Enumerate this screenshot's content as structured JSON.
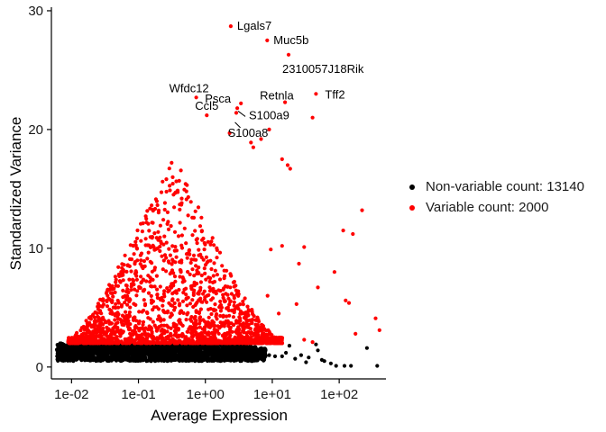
{
  "chart_data": {
    "type": "scatter",
    "xlabel": "Average Expression",
    "ylabel": "Standardized Variance",
    "x_scale": "log10",
    "xlim": [
      0.005,
      500
    ],
    "ylim": [
      -1,
      30.3
    ],
    "x_ticks": [
      0.01,
      0.1,
      1,
      10,
      100
    ],
    "x_tick_labels": [
      "1e-02",
      "1e-01",
      "1e+00",
      "1e+01",
      "1e+02"
    ],
    "y_ticks": [
      0,
      10,
      20,
      30
    ],
    "y_tick_labels": [
      "0",
      "10",
      "20",
      "30"
    ],
    "grid": false,
    "legend_position": "right",
    "series": [
      {
        "name": "Non-variable count: 13140",
        "color": "#000000",
        "count": 13140
      },
      {
        "name": "Variable count: 2000",
        "color": "#ff0000",
        "count": 2000
      }
    ],
    "labeled_points": [
      {
        "label": "Lgals7",
        "x": 2.4,
        "y": 28.7
      },
      {
        "label": "Muc5b",
        "x": 8.4,
        "y": 27.5
      },
      {
        "label": "2310057J18Rik",
        "x": 17.5,
        "y": 26.3
      },
      {
        "label": "Tff2",
        "x": 45.0,
        "y": 23.0
      },
      {
        "label": "Retnla",
        "x": 15.5,
        "y": 22.3
      },
      {
        "label": "Psca",
        "x": 3.4,
        "y": 22.2
      },
      {
        "label": "Wfdc12",
        "x": 0.73,
        "y": 22.7
      },
      {
        "label": "S100a9",
        "x": 2.9,
        "y": 21.4
      },
      {
        "label": "Ccl5",
        "x": 1.05,
        "y": 21.2
      },
      {
        "label": "S100a8",
        "x": 2.3,
        "y": 19.7
      }
    ],
    "other_outliers": [
      {
        "x": 3.0,
        "y": 21.8
      },
      {
        "x": 40.0,
        "y": 21.0
      },
      {
        "x": 4.8,
        "y": 18.9
      },
      {
        "x": 5.2,
        "y": 18.5
      },
      {
        "x": 6.8,
        "y": 19.2
      },
      {
        "x": 9.0,
        "y": 20.0
      },
      {
        "x": 14.0,
        "y": 17.5
      },
      {
        "x": 17.0,
        "y": 17.0
      },
      {
        "x": 18.5,
        "y": 16.7
      },
      {
        "x": 220.0,
        "y": 13.2
      },
      {
        "x": 160.0,
        "y": 11.2
      },
      {
        "x": 115.0,
        "y": 11.5
      },
      {
        "x": 30.0,
        "y": 10.1
      },
      {
        "x": 14.0,
        "y": 10.2
      },
      {
        "x": 9.5,
        "y": 9.9
      },
      {
        "x": 25.0,
        "y": 8.7
      },
      {
        "x": 85.0,
        "y": 8.0
      },
      {
        "x": 48.0,
        "y": 6.7
      },
      {
        "x": 125.0,
        "y": 5.6
      },
      {
        "x": 140.0,
        "y": 5.4
      },
      {
        "x": 23.0,
        "y": 5.3
      },
      {
        "x": 350.0,
        "y": 4.1
      },
      {
        "x": 400.0,
        "y": 3.1
      },
      {
        "x": 175.0,
        "y": 2.8
      },
      {
        "x": 8.5,
        "y": 6.0
      },
      {
        "x": 12.5,
        "y": 4.5
      },
      {
        "x": 30.0,
        "y": 2.3
      },
      {
        "x": 40.0,
        "y": 2.1
      }
    ],
    "black_tail": [
      {
        "x": 5.0,
        "y": 1.6
      },
      {
        "x": 7.0,
        "y": 1.3
      },
      {
        "x": 9.0,
        "y": 1.0
      },
      {
        "x": 11.0,
        "y": 0.9
      },
      {
        "x": 14.0,
        "y": 0.9
      },
      {
        "x": 18.0,
        "y": 1.8
      },
      {
        "x": 22.0,
        "y": 0.7
      },
      {
        "x": 27.0,
        "y": 1.0
      },
      {
        "x": 35.0,
        "y": 0.8
      },
      {
        "x": 45.0,
        "y": 1.9
      },
      {
        "x": 48.0,
        "y": 1.4
      },
      {
        "x": 60.0,
        "y": 0.5
      },
      {
        "x": 75.0,
        "y": 0.3
      },
      {
        "x": 90.0,
        "y": 0.1
      },
      {
        "x": 120.0,
        "y": 0.1
      },
      {
        "x": 150.0,
        "y": 0.1
      },
      {
        "x": 260.0,
        "y": 1.6
      },
      {
        "x": 370.0,
        "y": 0.1
      },
      {
        "x": 16.0,
        "y": 1.2
      },
      {
        "x": 32.0,
        "y": 0.4
      },
      {
        "x": 55.0,
        "y": 0.6
      }
    ],
    "bulk_shape": {
      "x_range": [
        0.006,
        20
      ],
      "black_y_range": [
        0.5,
        2.0
      ],
      "red_peak_x": 0.35,
      "red_peak_y": 18.2
    }
  }
}
